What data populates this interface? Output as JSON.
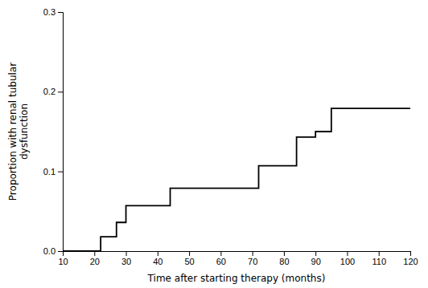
{
  "chart_data": {
    "type": "line",
    "x": [
      10,
      22,
      22,
      27,
      27,
      30,
      30,
      44,
      44,
      72,
      72,
      84,
      84,
      90,
      90,
      95,
      95,
      120
    ],
    "values": [
      0.0,
      0.0,
      0.018,
      0.018,
      0.036,
      0.036,
      0.057,
      0.057,
      0.079,
      0.079,
      0.107,
      0.107,
      0.143,
      0.143,
      0.15,
      0.15,
      0.179,
      0.179
    ],
    "color": "#000000",
    "xlabel": "Time after starting therapy (months)",
    "ylabel": "Proportion with renal tubular\ndysfunction",
    "xlim": [
      10,
      120
    ],
    "ylim": [
      0.0,
      0.3
    ],
    "xticks": [
      10,
      20,
      30,
      40,
      50,
      60,
      70,
      80,
      90,
      100,
      110,
      120
    ],
    "yticks": [
      {
        "value": 0.0,
        "label": "0.0"
      },
      0.1,
      0.2,
      0.3
    ]
  }
}
